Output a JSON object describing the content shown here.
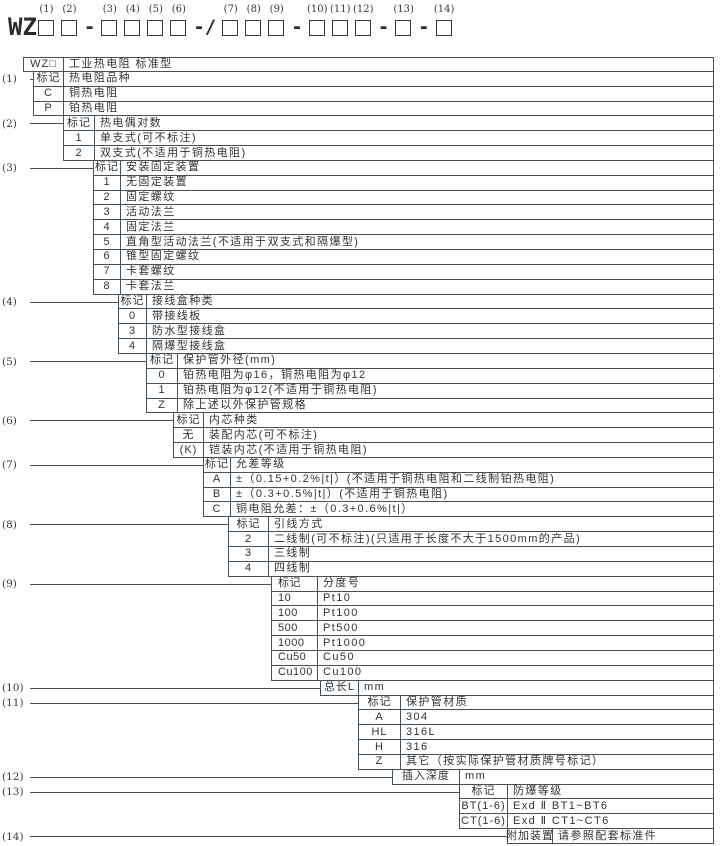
{
  "formula": {
    "prefix": "WZ",
    "nums": [
      "(1)",
      "(2)",
      "(3)",
      "(4)",
      "(5)",
      "(6)",
      "(7)",
      "(8)",
      "(9)",
      "(10)",
      "(11)",
      "(12)",
      "(13)",
      "(14)"
    ],
    "seps": [
      "-",
      "-/",
      "-",
      "-",
      "-"
    ]
  },
  "sections": [
    {
      "id": "root",
      "label": "",
      "rows": [
        {
          "key": "WZ□",
          "desc": "工业热电阻 标准型"
        }
      ]
    },
    {
      "id": "1",
      "label": "(1)",
      "rows": [
        {
          "key": "标记",
          "desc": "热电阻品种"
        },
        {
          "key": "C",
          "desc": "铜热电阻"
        },
        {
          "key": "P",
          "desc": "铂热电阻"
        }
      ]
    },
    {
      "id": "2",
      "label": "(2)",
      "rows": [
        {
          "key": "标记",
          "desc": "热电偶对数"
        },
        {
          "key": "1",
          "desc": "单支式(可不标注)"
        },
        {
          "key": "2",
          "desc": "双支式(不适用于铜热电阻)"
        }
      ]
    },
    {
      "id": "3",
      "label": "(3)",
      "rows": [
        {
          "key": "标记",
          "desc": "安装固定装置"
        },
        {
          "key": "1",
          "desc": "无固定装置"
        },
        {
          "key": "2",
          "desc": "固定螺纹"
        },
        {
          "key": "3",
          "desc": "活动法兰"
        },
        {
          "key": "4",
          "desc": "固定法兰"
        },
        {
          "key": "5",
          "desc": "直角型活动法兰(不适用于双支式和隔爆型)"
        },
        {
          "key": "6",
          "desc": "锥型固定螺纹"
        },
        {
          "key": "7",
          "desc": "卡套螺纹"
        },
        {
          "key": "8",
          "desc": "卡套法兰"
        }
      ]
    },
    {
      "id": "4",
      "label": "(4)",
      "rows": [
        {
          "key": "标记",
          "desc": "接线盒种类"
        },
        {
          "key": "0",
          "desc": "带接线板"
        },
        {
          "key": "3",
          "desc": "防水型接线盒"
        },
        {
          "key": "4",
          "desc": "隔爆型接线盒"
        }
      ]
    },
    {
      "id": "5",
      "label": "(5)",
      "rows": [
        {
          "key": "标记",
          "desc": "保护管外径(mm)"
        },
        {
          "key": "0",
          "desc": "铂热电阻为φ16，铜热电阻为φ12"
        },
        {
          "key": "1",
          "desc": "铂热电阻为φ12(不适用于铜热电阻)"
        },
        {
          "key": "Z",
          "desc": "除上述以外保护管规格"
        }
      ]
    },
    {
      "id": "6",
      "label": "(6)",
      "rows": [
        {
          "key": "标记",
          "desc": "内芯种类"
        },
        {
          "key": "无",
          "desc": "装配内芯(可不标注)"
        },
        {
          "key": "(K)",
          "desc": "铠装内芯(不适用于铜热电阻)"
        }
      ]
    },
    {
      "id": "7",
      "label": "(7)",
      "rows": [
        {
          "key": "标记",
          "desc": "允差等级"
        },
        {
          "key": "A",
          "desc": "±（0.15+0.2%|t|）(不适用于铜热电阻和二线制铂热电阻)"
        },
        {
          "key": "B",
          "desc": "±（0.3+0.5%|t|）(不适用于铜热电阻)"
        },
        {
          "key": "C",
          "desc": "铜电阻允差：±（0.3+0.6%|t|）"
        }
      ]
    },
    {
      "id": "8",
      "label": "(8)",
      "rows": [
        {
          "key": "标记",
          "desc": "引线方式"
        },
        {
          "key": "2",
          "desc": "二线制(可不标注)(只适用于长度不大于1500mm的产品)"
        },
        {
          "key": "3",
          "desc": "三线制"
        },
        {
          "key": "4",
          "desc": "四线制"
        }
      ]
    },
    {
      "id": "9",
      "label": "(9)",
      "rows": [
        {
          "key": "标记",
          "desc": "分度号"
        },
        {
          "key": "10",
          "desc": "Pt10"
        },
        {
          "key": "100",
          "desc": "Pt100"
        },
        {
          "key": "500",
          "desc": "Pt500"
        },
        {
          "key": "1000",
          "desc": "Pt1000"
        },
        {
          "key": "Cu50",
          "desc": "Cu50"
        },
        {
          "key": "Cu100",
          "desc": "Cu100"
        }
      ]
    },
    {
      "id": "10",
      "label": "(10)",
      "rows": [
        {
          "key": "总长L",
          "desc": "mm"
        }
      ]
    },
    {
      "id": "11",
      "label": "(11)",
      "rows": [
        {
          "key": "标记",
          "desc": "保护管材质"
        },
        {
          "key": "A",
          "desc": "304"
        },
        {
          "key": "HL",
          "desc": "316L"
        },
        {
          "key": "H",
          "desc": "316"
        },
        {
          "key": "Z",
          "desc": "其它（按实际保护管材质牌号标记）"
        }
      ]
    },
    {
      "id": "12",
      "label": "(12)",
      "rows": [
        {
          "key": "插入深度",
          "desc": "mm"
        }
      ]
    },
    {
      "id": "13",
      "label": "(13)",
      "rows": [
        {
          "key": "标记",
          "desc": "防爆等级"
        },
        {
          "key": "BT(1-6)",
          "desc": "Exd Ⅱ BT1~BT6"
        },
        {
          "key": "CT(1-6)",
          "desc": "Exd Ⅱ CT1~CT6"
        }
      ]
    },
    {
      "id": "14",
      "label": "(14)",
      "rows": [
        {
          "key": "附加装置",
          "desc": "请参照配套标准件"
        }
      ]
    }
  ]
}
